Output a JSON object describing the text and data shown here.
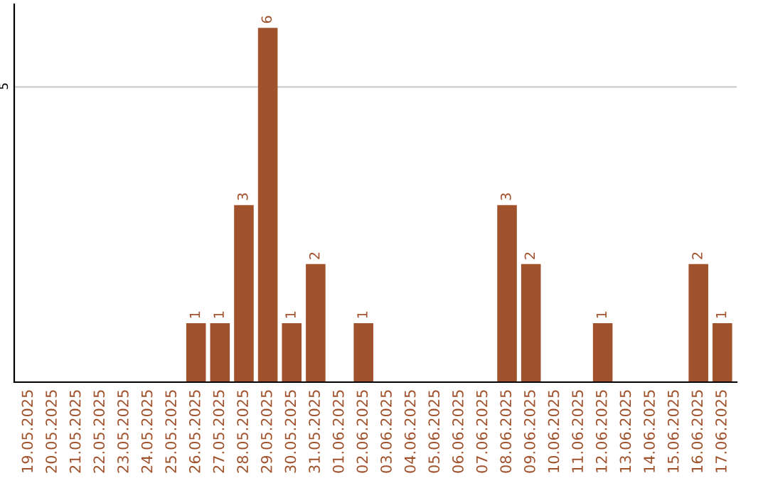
{
  "chart_data": {
    "type": "bar",
    "categories": [
      "19.05.2025",
      "20.05.2025",
      "21.05.2025",
      "22.05.2025",
      "23.05.2025",
      "24.05.2025",
      "25.05.2025",
      "26.05.2025",
      "27.05.2025",
      "28.05.2025",
      "29.05.2025",
      "30.05.2025",
      "31.05.2025",
      "01.06.2025",
      "02.06.2025",
      "03.06.2025",
      "04.06.2025",
      "05.06.2025",
      "06.06.2025",
      "07.06.2025",
      "08.06.2025",
      "09.06.2025",
      "10.06.2025",
      "11.06.2025",
      "12.06.2025",
      "13.06.2025",
      "14.06.2025",
      "15.06.2025",
      "16.06.2025",
      "17.06.2025"
    ],
    "values": [
      0,
      0,
      0,
      0,
      0,
      0,
      0,
      1,
      1,
      3,
      6,
      1,
      2,
      0,
      1,
      0,
      0,
      0,
      0,
      0,
      3,
      2,
      0,
      0,
      1,
      0,
      0,
      0,
      2,
      1
    ],
    "value_labels": [
      null,
      null,
      null,
      null,
      null,
      null,
      null,
      "1",
      "1",
      "3",
      "6",
      "1",
      "2",
      null,
      "1",
      null,
      null,
      null,
      null,
      null,
      "3",
      "2",
      null,
      null,
      "1",
      null,
      null,
      null,
      "2",
      "1"
    ],
    "color": "#a0522d",
    "ylim": [
      0,
      6.4
    ],
    "yticks": [
      5
    ],
    "grid": "y",
    "legend": false
  }
}
